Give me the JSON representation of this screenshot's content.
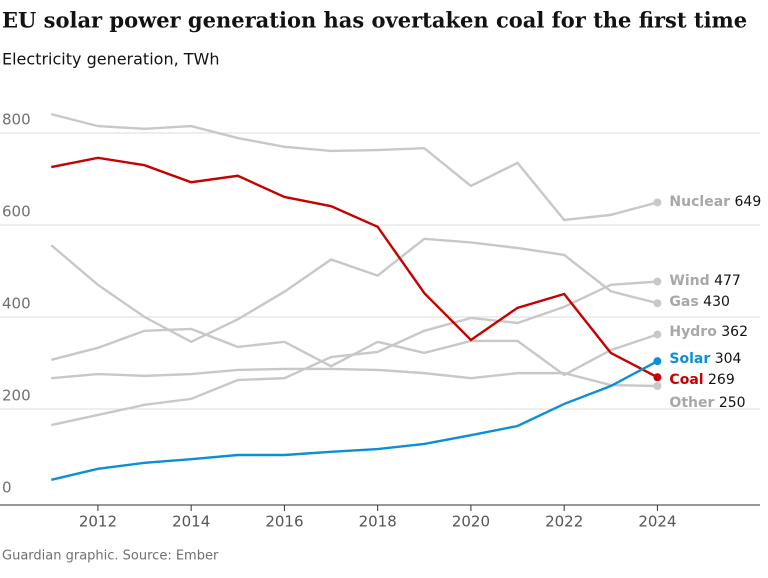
{
  "chart_data": {
    "type": "line",
    "title": "EU solar power generation has overtaken coal for the first time",
    "subtitle": "Electricity generation, TWh",
    "source": "Guardian graphic. Source: Ember",
    "x": [
      2011,
      2012,
      2013,
      2014,
      2015,
      2016,
      2017,
      2018,
      2019,
      2020,
      2021,
      2022,
      2023,
      2024
    ],
    "xlim": [
      2009.9,
      2026.2
    ],
    "xticks": [
      2012,
      2014,
      2016,
      2018,
      2020,
      2022,
      2024
    ],
    "ylim": [
      0,
      800
    ],
    "yticks": [
      0,
      200,
      400,
      600,
      800
    ],
    "grid": true,
    "series": [
      {
        "name": "Nuclear",
        "color": "#c8c8c8",
        "values": [
          841,
          815,
          809,
          815,
          789,
          770,
          761,
          763,
          767,
          685,
          735,
          611,
          622,
          649
        ]
      },
      {
        "name": "Wind",
        "color": "#c8c8c8",
        "values": [
          165,
          187,
          209,
          222,
          263,
          267,
          313,
          324,
          370,
          398,
          387,
          422,
          470,
          477
        ]
      },
      {
        "name": "Gas",
        "color": "#c8c8c8",
        "values": [
          556,
          470,
          400,
          346,
          395,
          455,
          525,
          490,
          570,
          562,
          550,
          535,
          456,
          430
        ]
      },
      {
        "name": "Hydro",
        "color": "#c8c8c8",
        "values": [
          307,
          333,
          370,
          374,
          335,
          346,
          293,
          346,
          322,
          348,
          348,
          274,
          328,
          362
        ]
      },
      {
        "name": "Other",
        "color": "#c8c8c8",
        "values": [
          267,
          276,
          272,
          276,
          285,
          287,
          287,
          285,
          278,
          267,
          278,
          278,
          252,
          250
        ]
      },
      {
        "name": "Coal",
        "color": "#c70000",
        "values": [
          726,
          746,
          730,
          693,
          707,
          661,
          641,
          596,
          452,
          350,
          420,
          450,
          322,
          269
        ]
      },
      {
        "name": "Solar",
        "color": "#0c8fd6",
        "values": [
          46,
          70,
          83,
          91,
          100,
          100,
          107,
          113,
          124,
          143,
          163,
          211,
          250,
          304
        ]
      }
    ]
  }
}
